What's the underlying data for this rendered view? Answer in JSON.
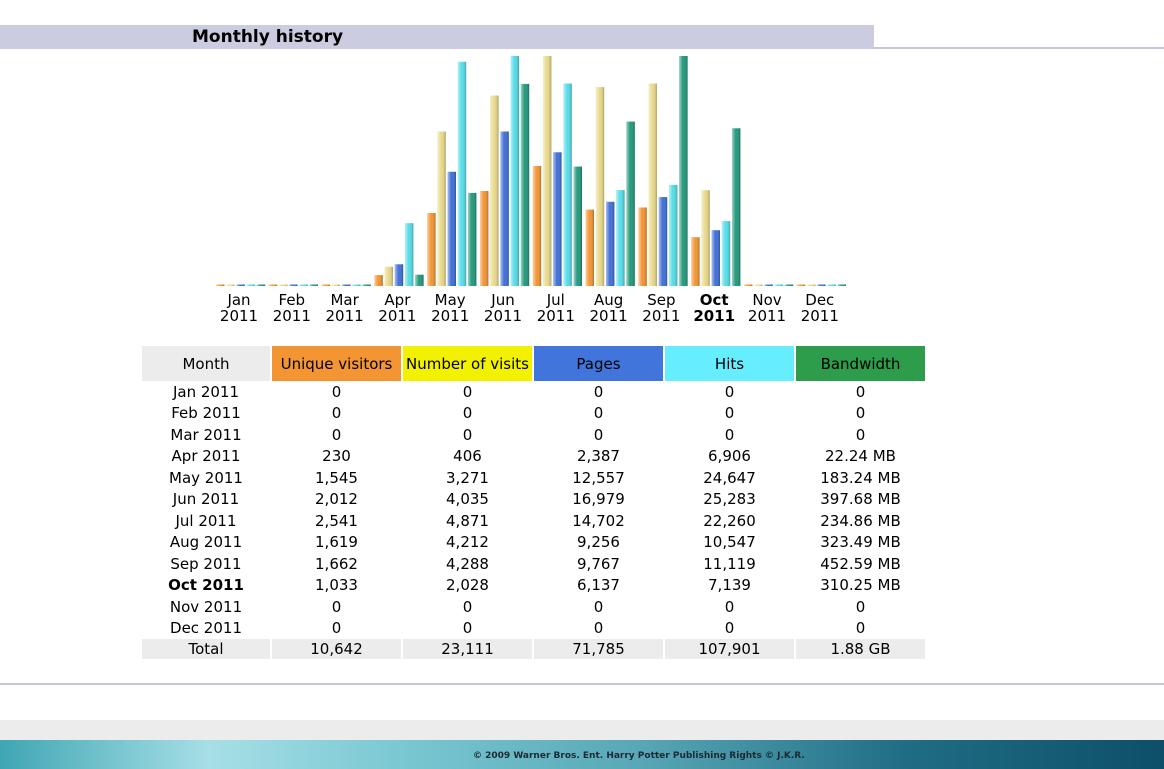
{
  "section_title": "Monthly history",
  "colors": {
    "unique_visitors": "#f39533",
    "visits": "#e8d98a",
    "pages": "#3f6fd8",
    "hits": "#55dde8",
    "bandwidth": "#22997a"
  },
  "chart_data": {
    "type": "bar",
    "title": "Monthly history",
    "categories": [
      "Jan",
      "Feb",
      "Mar",
      "Apr",
      "May",
      "Jun",
      "Jul",
      "Aug",
      "Sep",
      "Oct",
      "Nov",
      "Dec"
    ],
    "category_year": "2011",
    "current_month_index": 9,
    "series": [
      {
        "name": "Unique visitors",
        "values": [
          0,
          0,
          0,
          230,
          1545,
          2012,
          2541,
          1619,
          1662,
          1033,
          0,
          0
        ]
      },
      {
        "name": "Number of visits",
        "values": [
          0,
          0,
          0,
          406,
          3271,
          4035,
          4871,
          4212,
          4288,
          2028,
          0,
          0
        ]
      },
      {
        "name": "Pages",
        "values": [
          0,
          0,
          0,
          2387,
          12557,
          16979,
          14702,
          9256,
          9767,
          6137,
          0,
          0
        ]
      },
      {
        "name": "Hits",
        "values": [
          0,
          0,
          0,
          6906,
          24647,
          25283,
          22260,
          10547,
          11119,
          7139,
          0,
          0
        ]
      },
      {
        "name": "Bandwidth (MB)",
        "values": [
          0,
          0,
          0,
          22.24,
          183.24,
          397.68,
          234.86,
          323.49,
          452.59,
          310.25,
          0,
          0
        ]
      }
    ]
  },
  "table": {
    "headers": {
      "month": "Month",
      "unique_visitors": "Unique visitors",
      "visits": "Number of visits",
      "pages": "Pages",
      "hits": "Hits",
      "bandwidth": "Bandwidth"
    },
    "rows": [
      {
        "month": "Jan 2011",
        "unique_visitors": "0",
        "visits": "0",
        "pages": "0",
        "hits": "0",
        "bandwidth": "0"
      },
      {
        "month": "Feb 2011",
        "unique_visitors": "0",
        "visits": "0",
        "pages": "0",
        "hits": "0",
        "bandwidth": "0"
      },
      {
        "month": "Mar 2011",
        "unique_visitors": "0",
        "visits": "0",
        "pages": "0",
        "hits": "0",
        "bandwidth": "0"
      },
      {
        "month": "Apr 2011",
        "unique_visitors": "230",
        "visits": "406",
        "pages": "2,387",
        "hits": "6,906",
        "bandwidth": "22.24 MB"
      },
      {
        "month": "May 2011",
        "unique_visitors": "1,545",
        "visits": "3,271",
        "pages": "12,557",
        "hits": "24,647",
        "bandwidth": "183.24 MB"
      },
      {
        "month": "Jun 2011",
        "unique_visitors": "2,012",
        "visits": "4,035",
        "pages": "16,979",
        "hits": "25,283",
        "bandwidth": "397.68 MB"
      },
      {
        "month": "Jul 2011",
        "unique_visitors": "2,541",
        "visits": "4,871",
        "pages": "14,702",
        "hits": "22,260",
        "bandwidth": "234.86 MB"
      },
      {
        "month": "Aug 2011",
        "unique_visitors": "1,619",
        "visits": "4,212",
        "pages": "9,256",
        "hits": "10,547",
        "bandwidth": "323.49 MB"
      },
      {
        "month": "Sep 2011",
        "unique_visitors": "1,662",
        "visits": "4,288",
        "pages": "9,767",
        "hits": "11,119",
        "bandwidth": "452.59 MB"
      },
      {
        "month": "Oct 2011",
        "unique_visitors": "1,033",
        "visits": "2,028",
        "pages": "6,137",
        "hits": "7,139",
        "bandwidth": "310.25 MB"
      },
      {
        "month": "Nov 2011",
        "unique_visitors": "0",
        "visits": "0",
        "pages": "0",
        "hits": "0",
        "bandwidth": "0"
      },
      {
        "month": "Dec 2011",
        "unique_visitors": "0",
        "visits": "0",
        "pages": "0",
        "hits": "0",
        "bandwidth": "0"
      }
    ],
    "current_row_index": 9,
    "total": {
      "label": "Total",
      "unique_visitors": "10,642",
      "visits": "23,111",
      "pages": "71,785",
      "hits": "107,901",
      "bandwidth": "1.88 GB"
    }
  },
  "footer": {
    "copyright": "© 2009 Warner Bros. Ent. Harry Potter Publishing Rights © J.K.R."
  }
}
